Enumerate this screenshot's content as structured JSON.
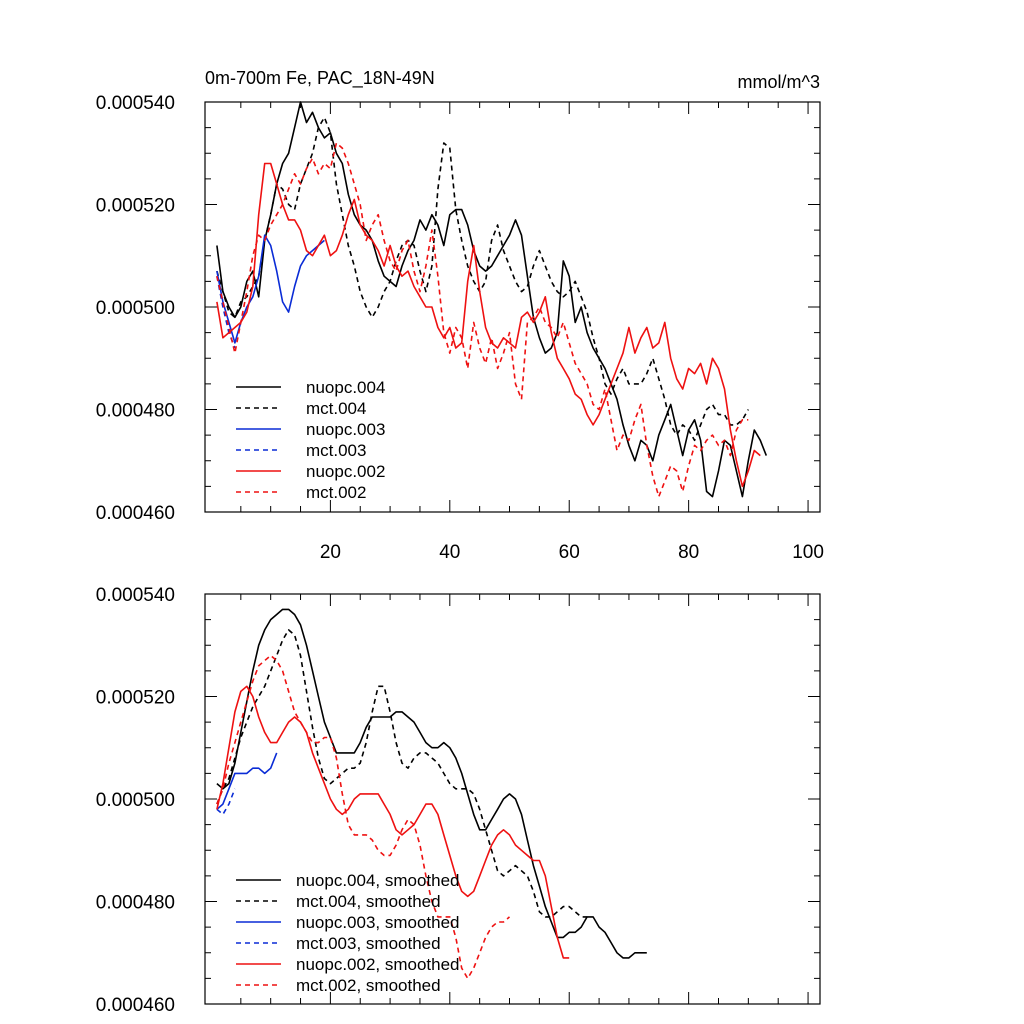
{
  "colors": {
    "black": "#000000",
    "blue": "#0a2cd6",
    "red": "#ee1111",
    "background": "#ffffff"
  },
  "chart_data": [
    {
      "type": "line",
      "title": "0m-700m Fe, PAC_18N-49N",
      "units": "mmol/m^3",
      "xlabel": "",
      "ylabel": "",
      "xlim": [
        -1,
        102
      ],
      "ylim": [
        0.00046,
        0.00054
      ],
      "xticks": [
        "20",
        "40",
        "60",
        "80",
        "100"
      ],
      "yticks": [
        "0.000460",
        "0.000480",
        "0.000500",
        "0.000520",
        "0.000540"
      ],
      "legend_position": "bottom-left",
      "series": [
        {
          "name": "nuopc.004",
          "color": "#000000",
          "dash": "solid",
          "x_start": 1,
          "values": [
            0.000512,
            0.000503,
            0.0005,
            0.000498,
            0.0005,
            0.000505,
            0.000507,
            0.000502,
            0.000513,
            0.000518,
            0.000524,
            0.000528,
            0.00053,
            0.000535,
            0.00054,
            0.000536,
            0.000538,
            0.000535,
            0.000533,
            0.000534,
            0.00053,
            0.000528,
            0.000522,
            0.000518,
            0.000516,
            0.000515,
            0.000513,
            0.000509,
            0.000506,
            0.000505,
            0.000504,
            0.000508,
            0.000511,
            0.000513,
            0.000517,
            0.000515,
            0.000518,
            0.000516,
            0.000512,
            0.000518,
            0.000519,
            0.000519,
            0.000516,
            0.000511,
            0.000508,
            0.000507,
            0.000508,
            0.00051,
            0.000512,
            0.000514,
            0.000517,
            0.000514,
            0.000506,
            0.000498,
            0.000494,
            0.000491,
            0.000492,
            0.000495,
            0.000509,
            0.000506,
            0.000497,
            0.0005,
            0.000495,
            0.000492,
            0.00049,
            0.000488,
            0.000485,
            0.000482,
            0.000477,
            0.000473,
            0.00047,
            0.000474,
            0.000473,
            0.00047,
            0.000475,
            0.000478,
            0.000481,
            0.000476,
            0.000471,
            0.000476,
            0.000478,
            0.000474,
            0.000464,
            0.000463,
            0.000468,
            0.000474,
            0.000473,
            0.000468,
            0.000463,
            0.00047,
            0.000476,
            0.000474,
            0.000471
          ]
        },
        {
          "name": "mct.004",
          "color": "#000000",
          "dash": "dashed",
          "x_start": 1,
          "values": [
            0.000507,
            0.000503,
            0.000499,
            0.000498,
            0.000501,
            0.000502,
            0.000504,
            0.000506,
            0.000513,
            0.000518,
            0.000524,
            0.000523,
            0.00052,
            0.000519,
            0.000524,
            0.000527,
            0.00053,
            0.000535,
            0.000537,
            0.000534,
            0.000524,
            0.000518,
            0.000512,
            0.000508,
            0.000503,
            0.0005,
            0.000498,
            0.0005,
            0.000503,
            0.000505,
            0.000509,
            0.000512,
            0.000513,
            0.000512,
            0.000507,
            0.000503,
            0.000508,
            0.000523,
            0.000532,
            0.000531,
            0.000519,
            0.000513,
            0.000508,
            0.000505,
            0.000503,
            0.000505,
            0.000513,
            0.000516,
            0.000511,
            0.000508,
            0.000505,
            0.000503,
            0.000504,
            0.000508,
            0.000511,
            0.000508,
            0.000505,
            0.000503,
            0.000502,
            0.000503,
            0.000505,
            0.000502,
            0.000499,
            0.000494,
            0.00049,
            0.000485,
            0.000483,
            0.000486,
            0.000488,
            0.000485,
            0.000485,
            0.000485,
            0.000487,
            0.00049,
            0.000486,
            0.000482,
            0.000477,
            0.000475,
            0.000477,
            0.000476,
            0.000474,
            0.000477,
            0.00048,
            0.000481,
            0.000479,
            0.000479,
            0.000477,
            0.000477,
            0.000478,
            0.00048
          ]
        },
        {
          "name": "nuopc.003",
          "color": "#0a2cd6",
          "dash": "solid",
          "x_start": 1,
          "values": [
            0.000507,
            0.000501,
            0.000497,
            0.000493,
            0.000497,
            0.0005,
            0.000502,
            0.000506,
            0.000514,
            0.000512,
            0.000507,
            0.000501,
            0.000499,
            0.000504,
            0.000508,
            0.00051,
            0.000511,
            0.000512,
            0.000513
          ]
        },
        {
          "name": "mct.003",
          "color": "#0a2cd6",
          "dash": "dashed",
          "x_start": 1,
          "values": [
            0.000506,
            0.0005,
            0.000495,
            0.000492
          ]
        },
        {
          "name": "nuopc.002",
          "color": "#ee1111",
          "dash": "solid",
          "x_start": 1,
          "values": [
            0.000501,
            0.000494,
            0.000495,
            0.000496,
            0.000497,
            0.000499,
            0.000504,
            0.000518,
            0.000528,
            0.000528,
            0.000524,
            0.00052,
            0.000517,
            0.000517,
            0.000515,
            0.000511,
            0.00051,
            0.000512,
            0.000514,
            0.00051,
            0.000511,
            0.000514,
            0.000518,
            0.000521,
            0.000516,
            0.000514,
            0.000513,
            0.000511,
            0.000508,
            0.000512,
            0.000508,
            0.000506,
            0.000507,
            0.000504,
            0.000502,
            0.0005,
            0.0005,
            0.000496,
            0.000494,
            0.000496,
            0.000492,
            0.000493,
            0.000505,
            0.000512,
            0.000503,
            0.000496,
            0.000493,
            0.000492,
            0.000494,
            0.000493,
            0.000492,
            0.000498,
            0.000499,
            0.000497,
            0.000499,
            0.000502,
            0.000495,
            0.00049,
            0.000488,
            0.000486,
            0.000483,
            0.000482,
            0.000479,
            0.000477,
            0.000479,
            0.000482,
            0.000485,
            0.000488,
            0.000491,
            0.000496,
            0.000491,
            0.000494,
            0.000496,
            0.000492,
            0.000493,
            0.000497,
            0.00049,
            0.000486,
            0.000484,
            0.000488,
            0.000487,
            0.000489,
            0.000485,
            0.00049,
            0.000488,
            0.000484,
            0.000476,
            0.00047,
            0.000465,
            0.000468,
            0.000472,
            0.000471
          ]
        },
        {
          "name": "mct.002",
          "color": "#ee1111",
          "dash": "dashed",
          "x_start": 1,
          "values": [
            0.000506,
            0.000501,
            0.000496,
            0.000491,
            0.000497,
            0.000503,
            0.00051,
            0.000514,
            0.000513,
            0.000516,
            0.000518,
            0.00052,
            0.000523,
            0.000526,
            0.000524,
            0.000527,
            0.000529,
            0.000526,
            0.000528,
            0.000527,
            0.000532,
            0.000531,
            0.000528,
            0.000524,
            0.00052,
            0.000513,
            0.000516,
            0.000518,
            0.000513,
            0.000509,
            0.000507,
            0.000511,
            0.000513,
            0.000507,
            0.000503,
            0.000508,
            0.000515,
            0.000506,
            0.000495,
            0.000491,
            0.000496,
            0.000494,
            0.000488,
            0.000497,
            0.000492,
            0.000489,
            0.000494,
            0.000488,
            0.000491,
            0.000495,
            0.000485,
            0.000482,
            0.000497,
            0.000498,
            0.0005,
            0.000497,
            0.000496,
            0.000494,
            0.000497,
            0.000493,
            0.000489,
            0.000487,
            0.000485,
            0.000481,
            0.00048,
            0.000484,
            0.000478,
            0.000472,
            0.000475,
            0.000474,
            0.000478,
            0.000481,
            0.000473,
            0.000467,
            0.000463,
            0.000466,
            0.000469,
            0.000468,
            0.000464,
            0.000469,
            0.000473,
            0.000472,
            0.000474,
            0.000475,
            0.000473,
            0.000474,
            0.000471,
            0.000476,
            0.000478,
            0.000478
          ]
        }
      ]
    },
    {
      "type": "line",
      "title": "",
      "xlabel": "",
      "ylabel": "",
      "xlim": [
        -1,
        102
      ],
      "ylim": [
        0.00046,
        0.00054
      ],
      "yticks": [
        "0.000460",
        "0.000480",
        "0.000500",
        "0.000520",
        "0.000540"
      ],
      "legend_position": "bottom-left",
      "series": [
        {
          "name": "nuopc.004, smoothed",
          "color": "#000000",
          "dash": "solid",
          "x_start": 1,
          "values": [
            0.000503,
            0.000502,
            0.000503,
            0.000507,
            0.000513,
            0.000519,
            0.000525,
            0.00053,
            0.000533,
            0.000535,
            0.000536,
            0.000537,
            0.000537,
            0.000536,
            0.000534,
            0.00053,
            0.000525,
            0.00052,
            0.000515,
            0.000512,
            0.000509,
            0.000509,
            0.000509,
            0.000509,
            0.000511,
            0.000514,
            0.000516,
            0.000516,
            0.000516,
            0.000516,
            0.000517,
            0.000517,
            0.000516,
            0.000515,
            0.000513,
            0.000511,
            0.00051,
            0.00051,
            0.000511,
            0.00051,
            0.000508,
            0.000505,
            0.000501,
            0.000497,
            0.000494,
            0.000494,
            0.000496,
            0.000498,
            0.0005,
            0.000501,
            0.0005,
            0.000497,
            0.000492,
            0.000487,
            0.000483,
            0.000479,
            0.000476,
            0.000473,
            0.000473,
            0.000474,
            0.000474,
            0.000475,
            0.000477,
            0.000477,
            0.000475,
            0.000474,
            0.000472,
            0.00047,
            0.000469,
            0.000469,
            0.00047,
            0.00047,
            0.00047
          ]
        },
        {
          "name": "mct.004, smoothed",
          "color": "#000000",
          "dash": "dashed",
          "x_start": 1,
          "values": [
            0.000499,
            0.000502,
            0.000504,
            0.000508,
            0.000512,
            0.000515,
            0.000518,
            0.00052,
            0.000522,
            0.000525,
            0.000528,
            0.000531,
            0.000533,
            0.000532,
            0.000528,
            0.000521,
            0.000514,
            0.000508,
            0.000504,
            0.000503,
            0.000504,
            0.000505,
            0.000506,
            0.000506,
            0.000507,
            0.000511,
            0.000517,
            0.000522,
            0.000522,
            0.000517,
            0.000511,
            0.000507,
            0.000506,
            0.000508,
            0.000509,
            0.000509,
            0.000508,
            0.000507,
            0.000505,
            0.000503,
            0.000502,
            0.000502,
            0.000502,
            0.000501,
            0.000498,
            0.000494,
            0.00049,
            0.000486,
            0.000485,
            0.000486,
            0.000487,
            0.000486,
            0.000485,
            0.000482,
            0.000478,
            0.000477,
            0.000477,
            0.000478,
            0.000479,
            0.000479,
            0.000478,
            0.000477,
            0.000477
          ]
        },
        {
          "name": "nuopc.003, smoothed",
          "color": "#0a2cd6",
          "dash": "solid",
          "x_start": 1,
          "values": [
            0.000498,
            0.000499,
            0.000502,
            0.000505,
            0.000505,
            0.000505,
            0.000506,
            0.000506,
            0.000505,
            0.000506,
            0.000509
          ]
        },
        {
          "name": "mct.003, smoothed",
          "color": "#0a2cd6",
          "dash": "dashed",
          "x_start": 1,
          "values": [
            0.000498,
            0.000497,
            0.000499,
            0.000502
          ]
        },
        {
          "name": "nuopc.002, smoothed",
          "color": "#ee1111",
          "dash": "solid",
          "x_start": 1,
          "values": [
            0.000498,
            0.000503,
            0.00051,
            0.000517,
            0.000521,
            0.000522,
            0.00052,
            0.000516,
            0.000513,
            0.000511,
            0.000511,
            0.000513,
            0.000515,
            0.000516,
            0.000515,
            0.000513,
            0.000509,
            0.000506,
            0.000503,
            0.0005,
            0.000498,
            0.000497,
            0.000498,
            0.0005,
            0.000501,
            0.000501,
            0.000501,
            0.000501,
            0.000499,
            0.000497,
            0.000494,
            0.000493,
            0.000494,
            0.000495,
            0.000497,
            0.000499,
            0.000499,
            0.000497,
            0.000493,
            0.000489,
            0.000485,
            0.000482,
            0.000481,
            0.000482,
            0.000485,
            0.000488,
            0.000491,
            0.000493,
            0.000494,
            0.000493,
            0.000491,
            0.00049,
            0.000489,
            0.000488,
            0.000488,
            0.000485,
            0.000479,
            0.000473,
            0.000469,
            0.000469
          ]
        },
        {
          "name": "mct.002, smoothed",
          "color": "#ee1111",
          "dash": "dashed",
          "x_start": 1,
          "values": [
            0.000499,
            0.000502,
            0.000507,
            0.000511,
            0.000515,
            0.000519,
            0.000523,
            0.000526,
            0.000527,
            0.000528,
            0.000527,
            0.000525,
            0.000521,
            0.000517,
            0.000515,
            0.000513,
            0.000511,
            0.000511,
            0.000512,
            0.000512,
            0.000508,
            0.000501,
            0.000495,
            0.000493,
            0.000493,
            0.000493,
            0.000492,
            0.00049,
            0.000489,
            0.000489,
            0.000491,
            0.000494,
            0.000496,
            0.000495,
            0.000491,
            0.000485,
            0.00048,
            0.000477,
            0.000477,
            0.000477,
            0.000473,
            0.000467,
            0.000465,
            0.000467,
            0.00047,
            0.000473,
            0.000475,
            0.000476,
            0.000476,
            0.000477
          ]
        }
      ]
    }
  ]
}
